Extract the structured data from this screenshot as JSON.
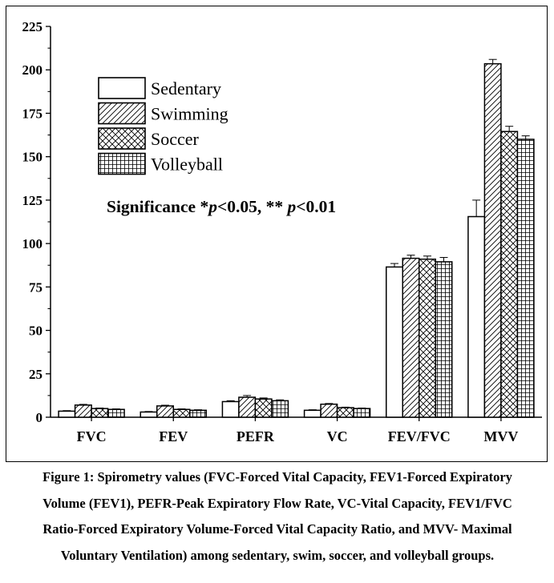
{
  "chart_data": {
    "type": "bar",
    "categories": [
      "FVC",
      "FEV",
      "PEFR",
      "VC",
      "FEV/FVC",
      "MVV"
    ],
    "series": [
      {
        "name": "Sedentary",
        "pattern": "none",
        "values": [
          3.5,
          3.0,
          9.0,
          4.0,
          86.5,
          115.5
        ],
        "errors": [
          0.3,
          0.3,
          0.5,
          0.3,
          2.0,
          9.5
        ]
      },
      {
        "name": "Swimming",
        "pattern": "diagonal",
        "values": [
          7.0,
          6.5,
          11.5,
          7.5,
          91.5,
          203.5
        ],
        "errors": [
          0.4,
          0.4,
          1.0,
          0.4,
          1.8,
          2.5
        ]
      },
      {
        "name": "Soccer",
        "pattern": "crosshatch",
        "values": [
          5.0,
          4.5,
          10.5,
          5.5,
          91.0,
          164.5
        ],
        "errors": [
          0.3,
          0.3,
          0.6,
          0.3,
          1.8,
          3.0
        ]
      },
      {
        "name": "Volleyball",
        "pattern": "grid",
        "values": [
          4.5,
          4.0,
          9.5,
          5.0,
          89.5,
          160.0
        ],
        "errors": [
          0.3,
          0.3,
          0.5,
          0.3,
          2.5,
          2.0
        ]
      }
    ],
    "ylim": [
      0,
      225
    ],
    "yticks": [
      0,
      25,
      50,
      75,
      100,
      125,
      150,
      175,
      200,
      225
    ],
    "title": "",
    "xlabel": "",
    "ylabel": "",
    "annotation": {
      "prefix": "Significance *",
      "p1": "p",
      "mid": "<0.05, ** ",
      "p2": "p",
      "suffix": "<0.01"
    },
    "legend_position": "top-left"
  },
  "colors": {
    "bar_fill": "#ffffff",
    "stroke": "#000000"
  },
  "caption": {
    "line1": "Figure 1: Spirometry values (FVC-Forced Vital Capacity, FEV1-Forced Expiratory",
    "line2": "Volume (FEV1), PEFR-Peak Expiratory Flow Rate, VC-Vital Capacity, FEV1/FVC",
    "line3": "Ratio-Forced Expiratory Volume-Forced Vital Capacity Ratio, and MVV- Maximal",
    "line4": "Voluntary Ventilation) among sedentary, swim, soccer, and volleyball groups."
  }
}
